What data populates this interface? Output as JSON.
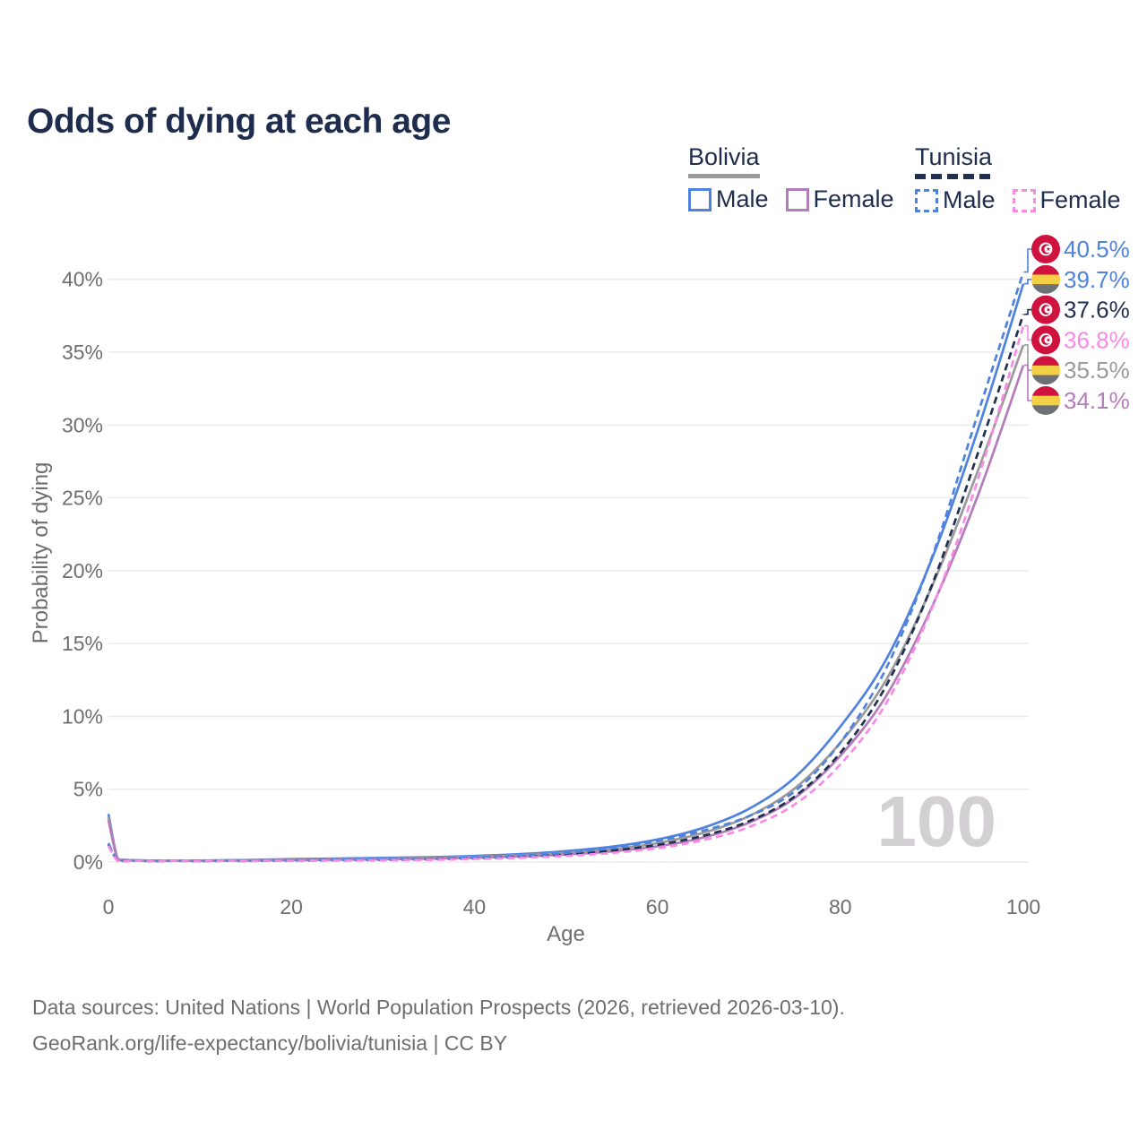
{
  "header": {
    "title": "Odds of dying at each age"
  },
  "legend": {
    "bolivia": {
      "title": "Bolivia",
      "male": "Male",
      "female": "Female"
    },
    "tunisia": {
      "title": "Tunisia",
      "male": "Male",
      "female": "Female"
    }
  },
  "watermark": "100",
  "footer": {
    "line1": "Data sources: United Nations | World Population Prospects (2026, retrieved 2026-03-10).",
    "line2": "GeoRank.org/life-expectancy/bolivia/tunisia | CC BY"
  },
  "colors": {
    "title_navy": "#1e2c4e",
    "axis_gray": "#6e6e70",
    "gridline": "#ececee",
    "watermark_gray": "#d3d0d4",
    "male_blue": "#4f82dd",
    "bolivia_female_purple": "#b37cba",
    "tunisia_female_pink": "#f98ae6",
    "bolivia_overall_gray": "#9b999c",
    "tunisia_overall_navy": "#22304f",
    "flag_red": "#d0123e",
    "flag_yellow": "#f3cf45",
    "flag_gray": "#6d7176",
    "flag_white": "#ffffff"
  },
  "chart_data": {
    "type": "line",
    "title": "Odds of dying at each age",
    "xlabel": "Age",
    "ylabel": "Probability of dying",
    "xlim": [
      0,
      100
    ],
    "ylim": [
      0,
      42.5
    ],
    "xticks": [
      0,
      20,
      40,
      60,
      80,
      100
    ],
    "yticks": [
      0,
      5,
      10,
      15,
      20,
      25,
      30,
      35,
      40
    ],
    "ytick_suffix": "%",
    "grid": "horizontal",
    "legend_position": "top-right",
    "x": [
      0,
      1,
      2,
      5,
      10,
      15,
      20,
      25,
      30,
      35,
      40,
      45,
      50,
      55,
      60,
      65,
      70,
      75,
      80,
      85,
      90,
      95,
      100
    ],
    "series": [
      {
        "id": "bolivia-male",
        "name": "Bolivia Male",
        "country": "bolivia",
        "sex": "male",
        "dash": false,
        "color_key": "male_blue",
        "end_label": "39.7%",
        "values": [
          3.3,
          0.25,
          0.15,
          0.1,
          0.1,
          0.14,
          0.2,
          0.24,
          0.28,
          0.33,
          0.42,
          0.55,
          0.75,
          1.05,
          1.55,
          2.35,
          3.65,
          5.8,
          9.3,
          13.9,
          20.8,
          29.6,
          39.7
        ]
      },
      {
        "id": "bolivia-both",
        "name": "Bolivia Both sexes",
        "country": "bolivia",
        "sex": "both",
        "dash": false,
        "color_key": "bolivia_overall_gray",
        "end_label": "35.5%",
        "values": [
          3.1,
          0.22,
          0.13,
          0.09,
          0.09,
          0.12,
          0.16,
          0.2,
          0.23,
          0.28,
          0.35,
          0.46,
          0.63,
          0.88,
          1.3,
          2.0,
          3.15,
          5.05,
          8.2,
          12.5,
          18.9,
          26.8,
          35.5
        ]
      },
      {
        "id": "bolivia-female",
        "name": "Bolivia Female",
        "country": "bolivia",
        "sex": "female",
        "dash": false,
        "color_key": "bolivia_female_purple",
        "end_label": "34.1%",
        "values": [
          2.9,
          0.2,
          0.12,
          0.08,
          0.08,
          0.1,
          0.13,
          0.16,
          0.19,
          0.23,
          0.29,
          0.38,
          0.52,
          0.73,
          1.08,
          1.68,
          2.7,
          4.4,
          7.3,
          11.4,
          17.5,
          25.1,
          34.1
        ]
      },
      {
        "id": "tunisia-both",
        "name": "Tunisia Both sexes",
        "country": "tunisia",
        "sex": "both",
        "dash": true,
        "color_key": "tunisia_overall_navy",
        "end_label": "37.6%",
        "values": [
          1.2,
          0.09,
          0.06,
          0.05,
          0.05,
          0.07,
          0.1,
          0.12,
          0.15,
          0.19,
          0.26,
          0.36,
          0.52,
          0.78,
          1.18,
          1.8,
          2.8,
          4.5,
          7.5,
          12.1,
          19.0,
          28.0,
          37.6
        ]
      },
      {
        "id": "tunisia-male",
        "name": "Tunisia Male",
        "country": "tunisia",
        "sex": "male",
        "dash": true,
        "color_key": "male_blue",
        "end_label": "40.5%",
        "values": [
          1.3,
          0.1,
          0.07,
          0.05,
          0.05,
          0.08,
          0.12,
          0.15,
          0.18,
          0.23,
          0.31,
          0.43,
          0.63,
          0.95,
          1.45,
          2.15,
          3.15,
          4.85,
          8.2,
          13.3,
          20.9,
          30.7,
          40.5
        ]
      },
      {
        "id": "tunisia-female",
        "name": "Tunisia Female",
        "country": "tunisia",
        "sex": "female",
        "dash": true,
        "color_key": "tunisia_female_pink",
        "end_label": "36.8%",
        "values": [
          1.1,
          0.08,
          0.05,
          0.04,
          0.04,
          0.06,
          0.08,
          0.1,
          0.12,
          0.15,
          0.21,
          0.29,
          0.42,
          0.63,
          0.95,
          1.5,
          2.4,
          3.95,
          6.7,
          10.9,
          17.4,
          26.2,
          36.8
        ]
      }
    ],
    "end_labels_top_to_bottom": [
      "40.5%",
      "39.7%",
      "37.6%",
      "36.8%",
      "35.5%",
      "34.1%"
    ]
  }
}
